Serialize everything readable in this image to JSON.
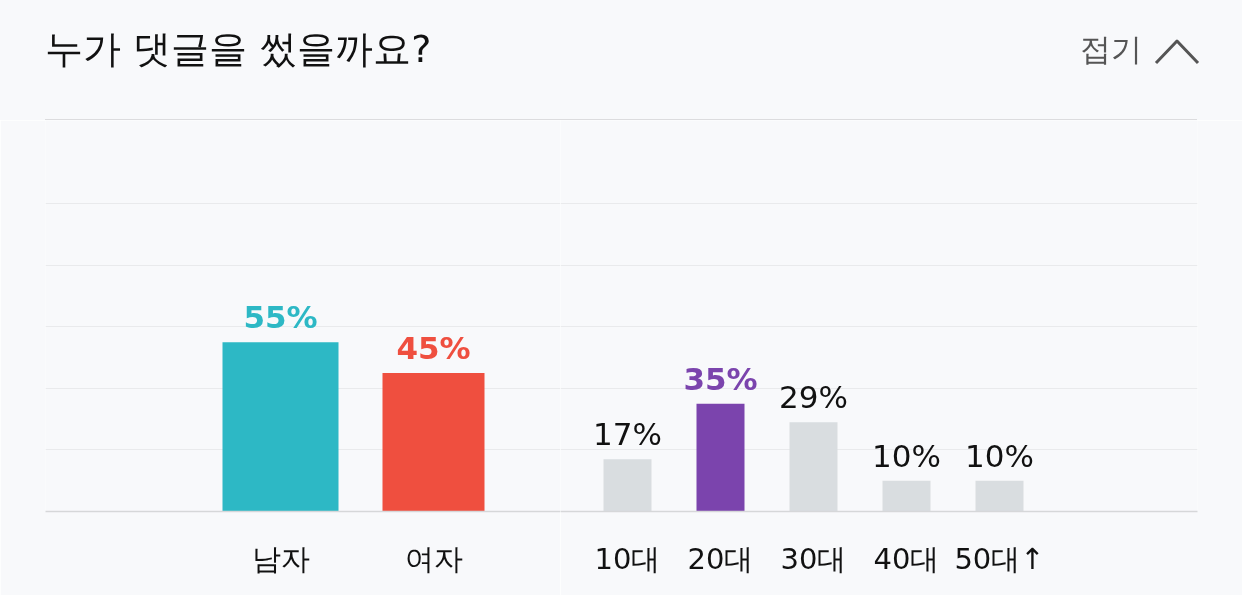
{
  "chart_data": [
    {
      "type": "bar",
      "title": "누가 댓글을 썼을까요?",
      "annotations": [
        "접기"
      ],
      "categories": [
        "남자",
        "여자"
      ],
      "values": [
        55,
        45
      ],
      "colors": [
        "#2db8c5",
        "#ef4f3f"
      ],
      "value_labels": [
        "55%",
        "45%"
      ],
      "ylim": [
        0,
        127
      ],
      "yticks": [
        {
          "value": 0,
          "label": null
        },
        {
          "value": 20,
          "label": null
        },
        {
          "value": 40,
          "label": null
        },
        {
          "value": 60,
          "label": null
        },
        {
          "value": 80,
          "label": null
        },
        {
          "value": 100,
          "label": null
        }
      ],
      "grid": "y",
      "tick_labels": "x"
    },
    {
      "type": "bar",
      "categories": [
        "10대",
        "20대",
        "30대",
        "40대",
        "50대↑"
      ],
      "values": [
        17,
        35,
        29,
        10,
        10
      ],
      "colors": [
        "#d9dde0",
        "#7b44ad",
        "#d9dde0",
        "#d9dde0",
        "#d9dde0"
      ],
      "value_labels": [
        "17%",
        "35%",
        "29%",
        "10%",
        "10%"
      ],
      "ylim": [
        0,
        127
      ],
      "yticks": [
        {
          "value": 0,
          "label": null
        },
        {
          "value": 20,
          "label": null
        },
        {
          "value": 40,
          "label": null
        },
        {
          "value": 60,
          "label": null
        },
        {
          "value": 80,
          "label": null
        },
        {
          "value": 100,
          "label": null
        }
      ],
      "grid": "y",
      "tick_labels": "x"
    }
  ]
}
